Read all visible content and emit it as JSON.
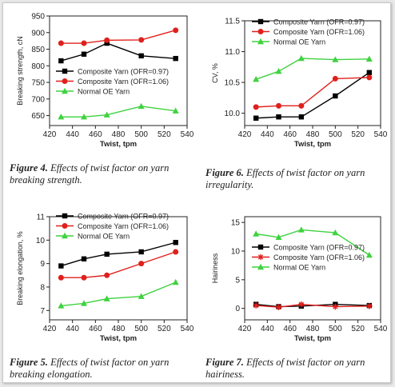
{
  "chart_data": [
    {
      "type": "line",
      "id": "fig4",
      "caption_label": "Figure 4.",
      "caption_text": "Effects of twist factor on yarn breaking strength.",
      "xlabel": "Twist, tpm",
      "ylabel": "Breaking strength, cN",
      "xlim": [
        420,
        540
      ],
      "ylim": [
        620,
        950
      ],
      "xticks": [
        "420",
        "440",
        "460",
        "480",
        "500",
        "520",
        "540"
      ],
      "yticks": [
        "650",
        "700",
        "750",
        "800",
        "850",
        "900",
        "950"
      ],
      "legend_position": "middle-right",
      "x": [
        430,
        450,
        470,
        500,
        530
      ],
      "series": [
        {
          "name": "Composite Yarn (OFR=0.97)",
          "color": "#000000",
          "marker": "square",
          "values": [
            815,
            835,
            868,
            830,
            822
          ]
        },
        {
          "name": "Composite Yarn (OFR=1.06)",
          "color": "#e0201c",
          "marker": "circle",
          "values": [
            868,
            868,
            877,
            878,
            907
          ]
        },
        {
          "name": "Normal OE Yarn",
          "color": "#3fd23f",
          "marker": "triangle",
          "values": [
            646,
            646,
            652,
            678,
            664
          ]
        }
      ]
    },
    {
      "type": "line",
      "id": "fig6",
      "caption_label": "Figure 6.",
      "caption_text": "Effects of twist factor on yarn irregularity.",
      "xlabel": "Twist, tpm",
      "ylabel": "CV, %",
      "xlim": [
        420,
        540
      ],
      "ylim": [
        9.8,
        11.5
      ],
      "xticks": [
        "420",
        "440",
        "460",
        "480",
        "500",
        "520",
        "540"
      ],
      "yticks": [
        "10.0",
        "10.5",
        "11.0",
        "11.5"
      ],
      "legend_position": "top-left",
      "x": [
        430,
        450,
        470,
        500,
        530
      ],
      "series": [
        {
          "name": "Composite Yarn (OFR=0.97)",
          "color": "#000000",
          "marker": "square",
          "values": [
            9.92,
            9.94,
            9.94,
            10.28,
            10.66
          ]
        },
        {
          "name": "Composite Yarn (OFR=1.06)",
          "color": "#e0201c",
          "marker": "circle",
          "values": [
            10.1,
            10.12,
            10.12,
            10.56,
            10.58
          ]
        },
        {
          "name": "Normal OE Yarn",
          "color": "#3fd23f",
          "marker": "triangle",
          "values": [
            10.55,
            10.68,
            10.89,
            10.87,
            10.88
          ]
        }
      ]
    },
    {
      "type": "line",
      "id": "fig5",
      "caption_label": "Figure 5.",
      "caption_text": "Effects of twist factor on yarn breaking elongation.",
      "xlabel": "Twist, tpm",
      "ylabel": "Breaking elongation, %",
      "xlim": [
        420,
        540
      ],
      "ylim": [
        6.6,
        11
      ],
      "xticks": [
        "420",
        "440",
        "460",
        "480",
        "500",
        "520",
        "540"
      ],
      "yticks": [
        "7",
        "8",
        "9",
        "10",
        "11"
      ],
      "legend_position": "top-left",
      "x": [
        430,
        450,
        470,
        500,
        530
      ],
      "series": [
        {
          "name": "Composite Yarn (OFR=0.97)",
          "color": "#000000",
          "marker": "square",
          "values": [
            8.9,
            9.2,
            9.4,
            9.5,
            9.9
          ]
        },
        {
          "name": "Composite Yarn (OFR=1.06)",
          "color": "#e0201c",
          "marker": "circle",
          "values": [
            8.4,
            8.4,
            8.5,
            9.0,
            9.5
          ]
        },
        {
          "name": "Normal OE Yarn",
          "color": "#3fd23f",
          "marker": "triangle",
          "values": [
            7.2,
            7.3,
            7.5,
            7.6,
            8.2
          ]
        }
      ]
    },
    {
      "type": "line",
      "id": "fig7",
      "caption_label": "Figure 7.",
      "caption_text": "Effects of twist factor on yarn hairiness.",
      "xlabel": "Twist, tpm",
      "ylabel": "Hairiness",
      "xlim": [
        420,
        540
      ],
      "ylim": [
        -2,
        16
      ],
      "xticks": [
        "420",
        "440",
        "460",
        "480",
        "500",
        "520",
        "540"
      ],
      "yticks": [
        "0",
        "5",
        "10",
        "15"
      ],
      "legend_position": "middle-right",
      "x": [
        430,
        450,
        470,
        500,
        530
      ],
      "series": [
        {
          "name": "Composite Yarn (OFR=0.97)",
          "color": "#000000",
          "marker": "square",
          "values": [
            0.7,
            0.3,
            0.4,
            0.7,
            0.5
          ]
        },
        {
          "name": "Composite Yarn (OFR=1.06)",
          "color": "#e0201c",
          "marker": "star",
          "values": [
            0.5,
            0.2,
            0.7,
            0.3,
            0.4
          ]
        },
        {
          "name": "Normal OE Yarn",
          "color": "#3fd23f",
          "marker": "triangle",
          "values": [
            13.0,
            12.4,
            13.7,
            13.2,
            9.3
          ]
        }
      ]
    }
  ]
}
